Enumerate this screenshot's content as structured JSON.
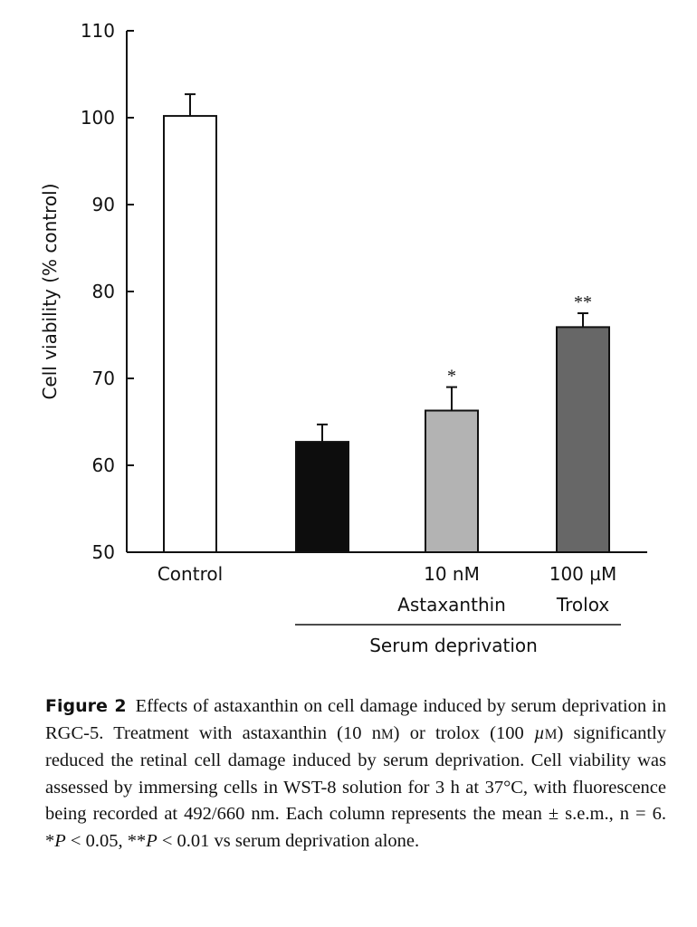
{
  "chart_data": {
    "type": "bar",
    "title": "",
    "ylabel": "Cell viability (% control)",
    "xlabel": "",
    "ylim": [
      50,
      110
    ],
    "yticks": [
      50,
      60,
      70,
      80,
      90,
      100,
      110
    ],
    "grid": false,
    "categories": [
      {
        "line1": "Control",
        "line2": ""
      },
      {
        "line1": "",
        "line2": ""
      },
      {
        "line1": "10 nM",
        "line2": "Astaxanthin"
      },
      {
        "line1": "100 µM",
        "line2": "Trolox"
      }
    ],
    "values": [
      100.2,
      62.7,
      66.3,
      75.9
    ],
    "errors": [
      2.5,
      2.0,
      2.7,
      1.6
    ],
    "significance": [
      "",
      "",
      "*",
      "**"
    ],
    "colors": [
      "#ffffff",
      "#0d0d0d",
      "#b3b3b3",
      "#676767"
    ],
    "group_label": "Serum deprivation"
  },
  "caption": {
    "label": "Figure 2",
    "segments": [
      {
        "t": "Effects of astaxanthin on cell damage induced by serum deprivation in RGC-5. Treatment with astaxanthin (10 n"
      },
      {
        "t": "M",
        "s": "sc"
      },
      {
        "t": ") or trolox (100 "
      },
      {
        "t": "µ",
        "s": "i"
      },
      {
        "t": "M",
        "s": "sc"
      },
      {
        "t": ") significantly reduced the retinal cell damage induced by serum deprivation. Cell viability was assessed by immersing cells in WST-8 solution for 3 h at 37°C, with fluorescence being recorded at 492/660 nm. Each column represents the mean ± s.e.m., n = 6. *"
      },
      {
        "t": "P",
        "s": "i"
      },
      {
        "t": " < 0.05, **"
      },
      {
        "t": "P",
        "s": "i"
      },
      {
        "t": " < 0.01 vs serum deprivation alone."
      }
    ]
  }
}
